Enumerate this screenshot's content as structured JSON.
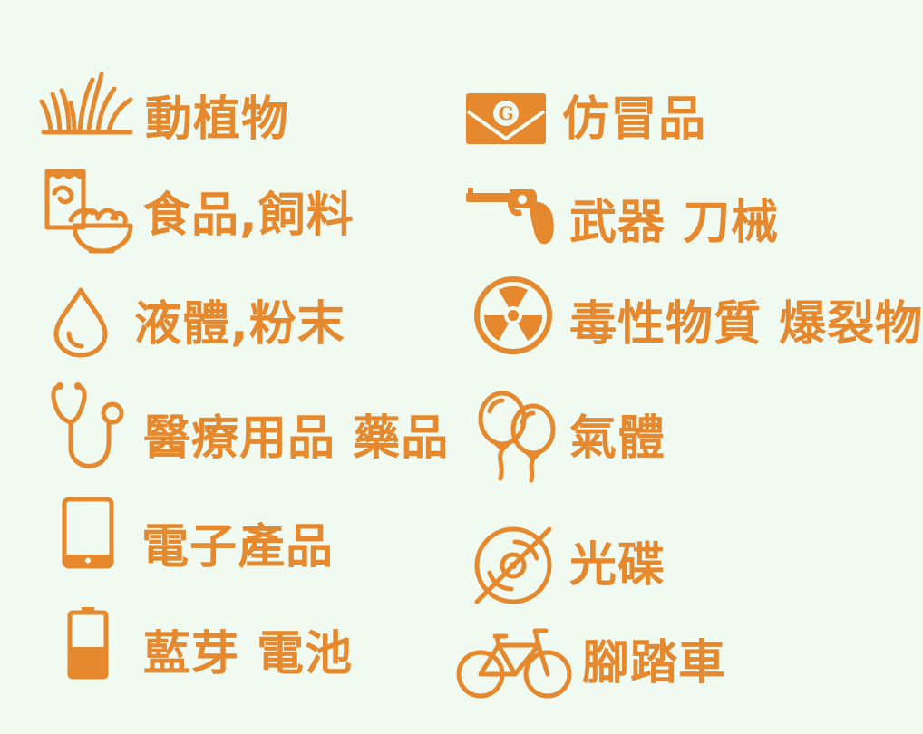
{
  "items": [
    {
      "icon": "grass-icon",
      "label": "動植物"
    },
    {
      "icon": "envelope-icon",
      "label": "仿冒品"
    },
    {
      "icon": "snack-bowl-icon",
      "label": "食品,飼料"
    },
    {
      "icon": "revolver-icon",
      "label": "武器 刀械"
    },
    {
      "icon": "droplet-icon",
      "label": "液體,粉末"
    },
    {
      "icon": "radiation-icon",
      "label": "毒性物質 爆裂物"
    },
    {
      "icon": "stethoscope-icon",
      "label": "醫療用品 藥品"
    },
    {
      "icon": "balloons-icon",
      "label": "氣體"
    },
    {
      "icon": "tablet-icon",
      "label": "電子產品"
    },
    {
      "icon": "disc-icon",
      "label": "光碟"
    },
    {
      "icon": "battery-icon",
      "label": "藍芽 電池"
    },
    {
      "icon": "bicycle-icon",
      "label": "腳踏車"
    }
  ],
  "envelope_letter": "G",
  "colors": {
    "accent": "#e6892e",
    "background": "#f0faf0"
  }
}
